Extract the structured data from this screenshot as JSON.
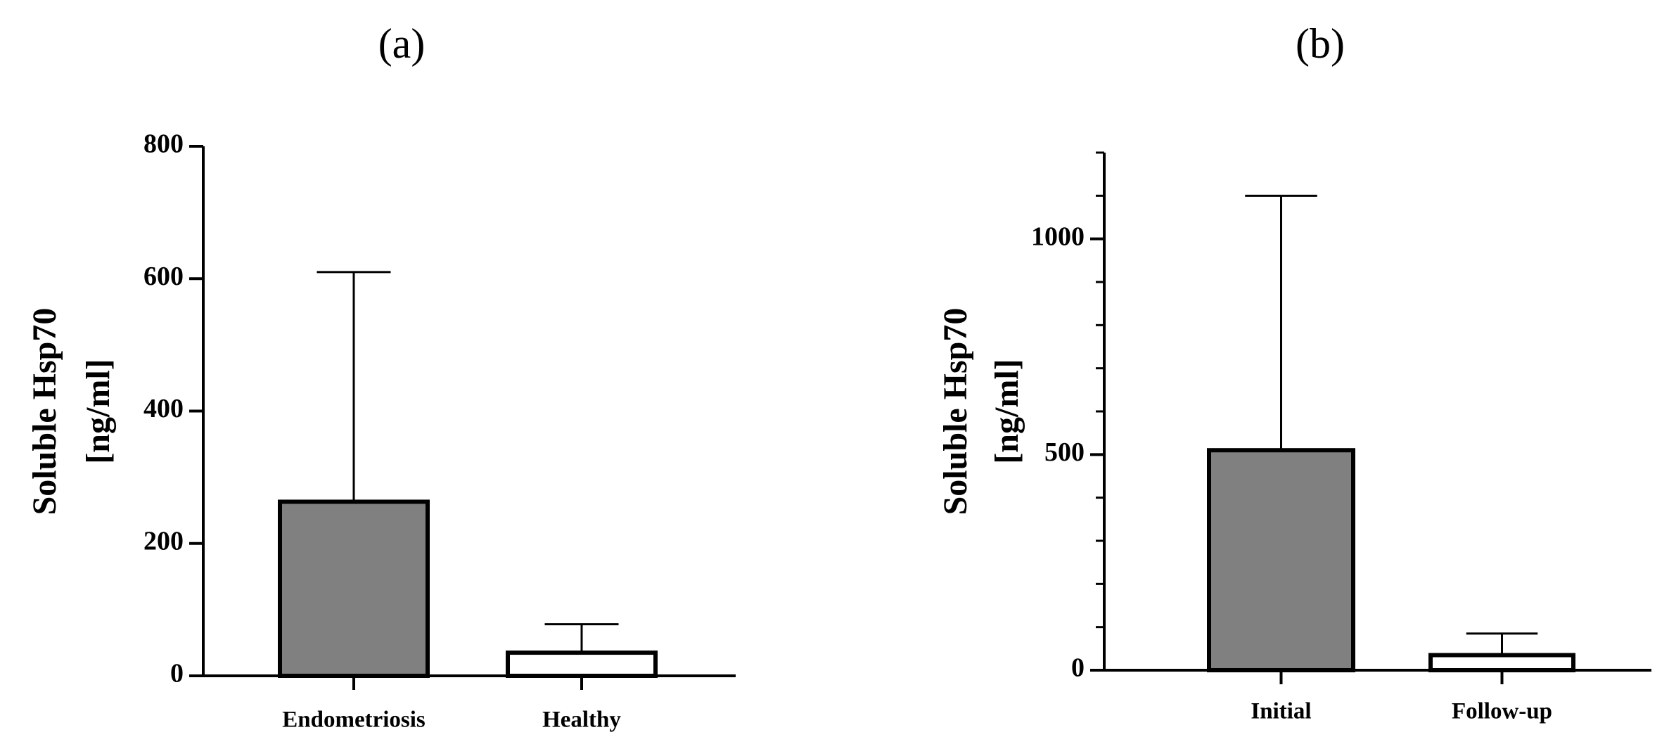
{
  "chart_data": [
    {
      "type": "bar",
      "title": "(a)",
      "ylabel": [
        "Soluble Hsp70",
        "[ng/ml]"
      ],
      "categories": [
        "Endometriosis",
        "Healthy"
      ],
      "values": [
        263,
        35
      ],
      "errors": [
        347,
        43
      ],
      "colors": [
        "#808080",
        "#ffffff"
      ],
      "ylim": [
        0,
        800
      ],
      "yticks": [
        0,
        200,
        400,
        600,
        800
      ]
    },
    {
      "type": "bar",
      "title": "(b)",
      "ylabel": [
        "Soluble Hsp70",
        "[ng/ml]"
      ],
      "categories": [
        "Initial",
        "Follow-up"
      ],
      "values": [
        510,
        35
      ],
      "errors": [
        590,
        50
      ],
      "colors": [
        "#808080",
        "#ffffff"
      ],
      "ylim": [
        0,
        1200
      ],
      "yticks": [
        0,
        500,
        1000
      ],
      "minor_yticks": [
        100,
        200,
        300,
        400,
        600,
        700,
        800,
        900,
        1100,
        1200
      ]
    }
  ]
}
